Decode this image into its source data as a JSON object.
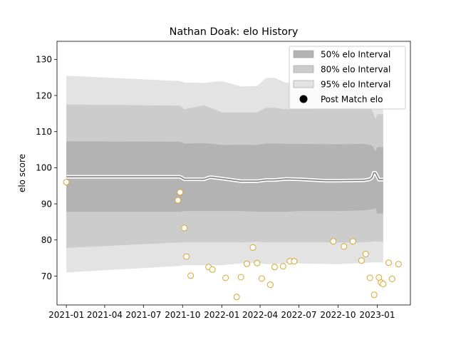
{
  "chart_data": {
    "type": "line",
    "title": "Nathan Doak: elo History",
    "xlabel": "",
    "ylabel": "elo score",
    "xlim": [
      "2020-12-10",
      "2023-03-20"
    ],
    "ylim": [
      62,
      135
    ],
    "x_ticks": [
      "2021-01",
      "2021-04",
      "2021-07",
      "2021-10",
      "2022-01",
      "2022-04",
      "2022-07",
      "2022-10",
      "2023-01"
    ],
    "y_ticks": [
      70,
      80,
      90,
      100,
      110,
      120,
      130
    ],
    "legend_position": "top-right",
    "grid": false,
    "legend": [
      {
        "label": "50% elo Interval",
        "kind": "patch",
        "color": "#b3b3b3"
      },
      {
        "label": "80% elo Interval",
        "kind": "patch",
        "color": "#cccccc"
      },
      {
        "label": "95% elo Interval",
        "kind": "patch",
        "color": "#e3e3e3"
      },
      {
        "label": "Post Match elo",
        "kind": "marker",
        "color": "#000000"
      }
    ],
    "colors": {
      "band50": "#b3b3b3",
      "band80": "#cccccc",
      "band95": "#e3e3e3",
      "mean_line": "#808080",
      "marker_edge": "#d4a72c",
      "marker_face": "#ffffff"
    },
    "series": [
      {
        "kind": "band",
        "level": "95%",
        "x": [
          "2021-01-01",
          "2021-09-25",
          "2021-10-05",
          "2021-11-20",
          "2022-01-01",
          "2022-02-15",
          "2022-03-25",
          "2022-04-15",
          "2022-05-05",
          "2022-06-01",
          "2022-07-01",
          "2022-10-01",
          "2022-12-01",
          "2022-12-20",
          "2023-01-01",
          "2023-01-15"
        ],
        "upper": [
          125.5,
          124.0,
          123.6,
          123.5,
          124.0,
          122.5,
          122.6,
          124.9,
          124.9,
          123.5,
          123.8,
          123.5,
          123.7,
          123.5,
          123.2,
          122.8
        ],
        "lower": [
          71.0,
          72.8,
          73.0,
          73.0,
          73.0,
          73.5,
          73.6,
          73.3,
          73.3,
          73.6,
          73.5,
          73.3,
          73.6,
          73.8,
          73.8,
          73.8
        ]
      },
      {
        "kind": "band",
        "level": "80%",
        "x": [
          "2021-01-01",
          "2021-09-25",
          "2021-10-05",
          "2021-11-20",
          "2022-01-01",
          "2022-02-15",
          "2022-03-25",
          "2022-04-15",
          "2022-05-05",
          "2022-06-01",
          "2022-07-01",
          "2022-10-01",
          "2022-12-01",
          "2022-12-20",
          "2022-12-28",
          "2023-01-01",
          "2023-01-15"
        ],
        "upper": [
          117.5,
          117.2,
          116.2,
          117.3,
          115.3,
          115.3,
          115.3,
          116.6,
          116.6,
          116.2,
          116.3,
          116.5,
          116.8,
          116.0,
          113.5,
          114.8,
          114.8
        ],
        "lower": [
          77.8,
          79.3,
          79.3,
          79.3,
          79.3,
          79.3,
          79.5,
          79.3,
          79.3,
          79.3,
          79.3,
          79.3,
          79.3,
          79.5,
          79.7,
          79.5,
          79.5
        ]
      },
      {
        "kind": "band",
        "level": "50%",
        "x": [
          "2021-01-01",
          "2021-09-25",
          "2021-10-05",
          "2021-11-20",
          "2021-12-10",
          "2022-01-01",
          "2022-02-15",
          "2022-03-25",
          "2022-04-15",
          "2022-05-05",
          "2022-06-01",
          "2022-07-01",
          "2022-10-01",
          "2022-12-01",
          "2022-12-20",
          "2022-12-28",
          "2023-01-01",
          "2023-01-15"
        ],
        "upper": [
          107.3,
          107.2,
          106.7,
          106.8,
          106.6,
          106.3,
          106.4,
          106.3,
          106.7,
          106.7,
          106.6,
          106.6,
          106.5,
          106.6,
          106.2,
          104.6,
          105.7,
          105.7
        ],
        "lower": [
          87.8,
          87.8,
          88.0,
          88.0,
          88.0,
          88.0,
          88.0,
          87.8,
          87.8,
          87.8,
          87.8,
          88.0,
          88.0,
          88.2,
          88.5,
          88.8,
          87.3,
          87.3
        ]
      },
      {
        "kind": "line",
        "x": [
          "2021-01-01",
          "2021-09-25",
          "2021-10-05",
          "2021-11-20",
          "2021-12-05",
          "2022-01-01",
          "2022-02-01",
          "2022-02-15",
          "2022-03-25",
          "2022-04-15",
          "2022-05-05",
          "2022-06-01",
          "2022-07-01",
          "2022-09-01",
          "2022-10-01",
          "2022-12-01",
          "2022-12-15",
          "2022-12-20",
          "2022-12-24",
          "2022-12-28",
          "2023-01-05",
          "2023-01-15"
        ],
        "y": [
          97.5,
          97.5,
          96.8,
          96.8,
          97.4,
          97.0,
          96.5,
          96.3,
          96.3,
          96.6,
          96.6,
          96.9,
          96.8,
          96.4,
          96.4,
          96.5,
          96.8,
          97.3,
          98.6,
          98.6,
          96.7,
          96.7
        ]
      },
      {
        "kind": "scatter",
        "name": "Post Match elo",
        "x": [
          "2021-01-01",
          "2021-09-20",
          "2021-09-25",
          "2021-10-05",
          "2021-10-10",
          "2021-10-20",
          "2021-12-01",
          "2021-12-10",
          "2022-01-10",
          "2022-02-05",
          "2022-02-15",
          "2022-03-01",
          "2022-03-15",
          "2022-03-25",
          "2022-04-05",
          "2022-04-25",
          "2022-05-05",
          "2022-05-25",
          "2022-06-10",
          "2022-06-20",
          "2022-09-20",
          "2022-10-15",
          "2022-11-05",
          "2022-11-25",
          "2022-12-05",
          "2022-12-15",
          "2022-12-25",
          "2023-01-05",
          "2023-01-10",
          "2023-01-15",
          "2023-01-28",
          "2023-02-05",
          "2023-02-20"
        ],
        "y": [
          96.0,
          91.0,
          93.2,
          83.3,
          75.4,
          70.1,
          72.5,
          71.8,
          69.5,
          64.2,
          69.7,
          73.4,
          77.9,
          73.6,
          69.3,
          67.6,
          72.5,
          72.7,
          74.1,
          74.1,
          79.6,
          78.2,
          79.6,
          74.3,
          76.1,
          69.5,
          64.8,
          69.6,
          68.2,
          67.8,
          73.7,
          69.2,
          73.3
        ]
      }
    ]
  }
}
